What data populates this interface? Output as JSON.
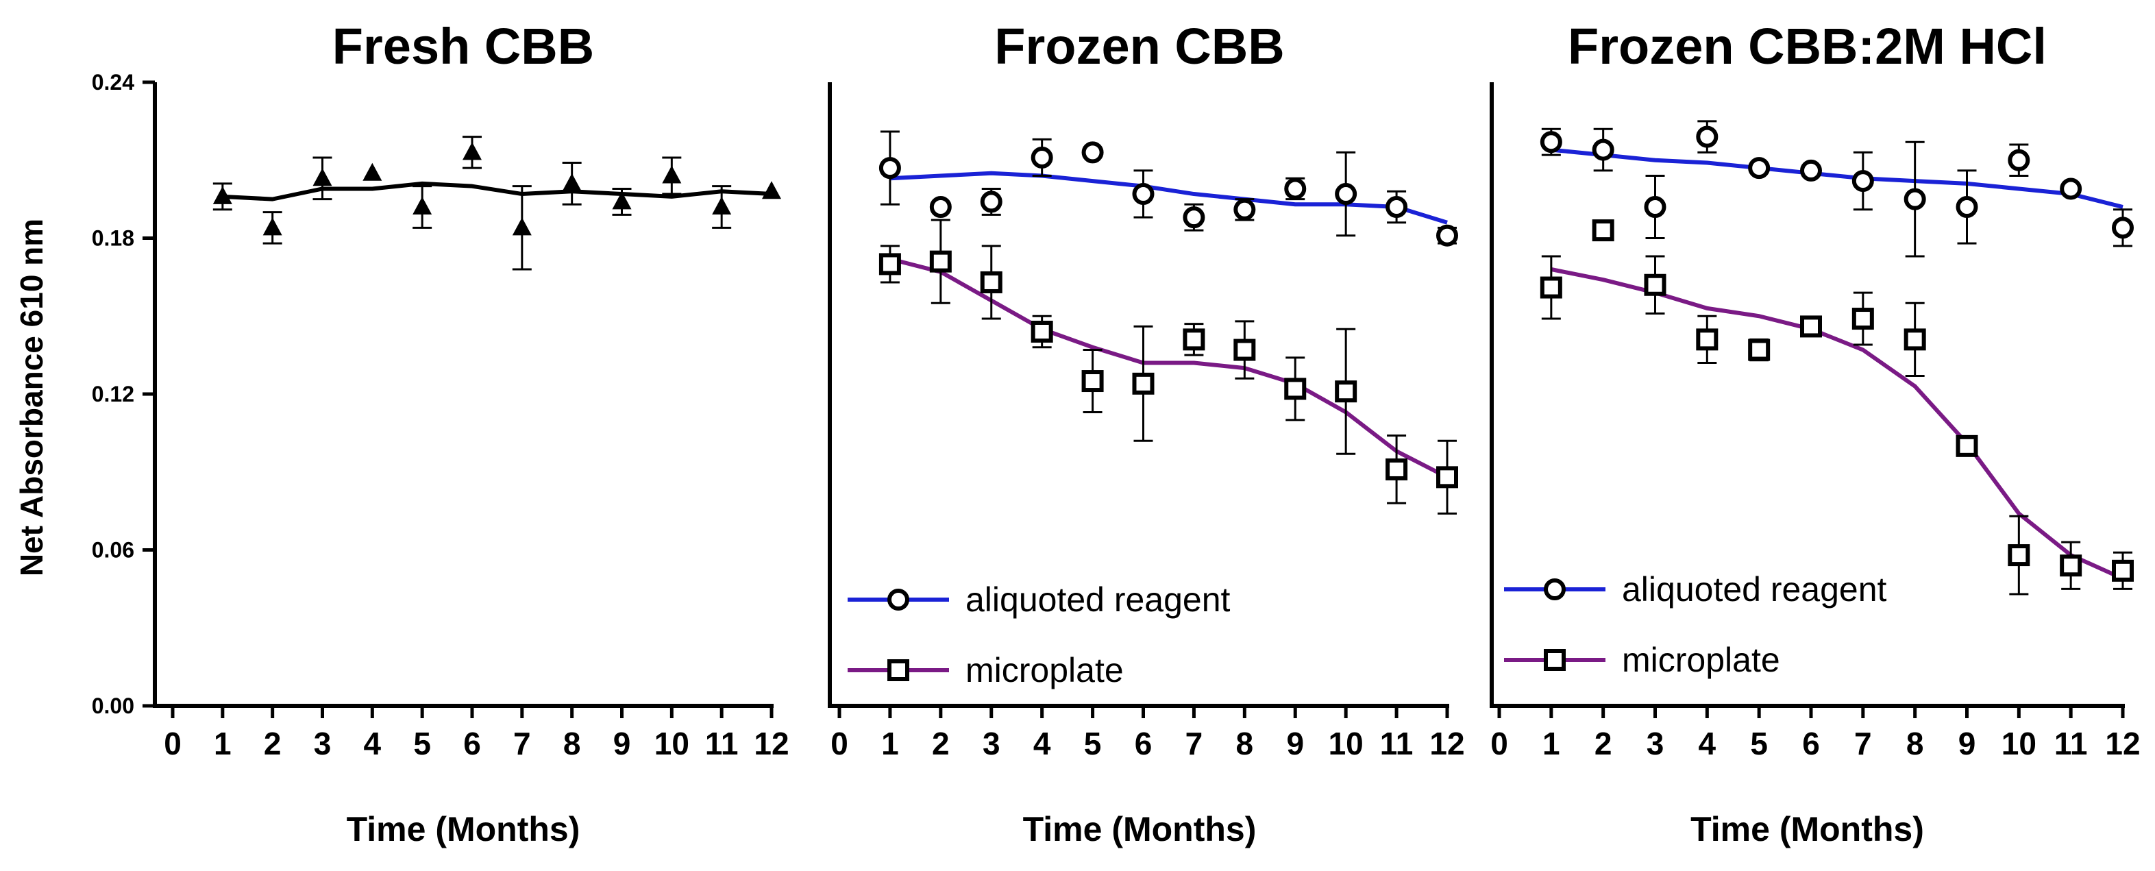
{
  "ylabel": "Net Absorbance 610 nm",
  "chart_data": [
    {
      "type": "line",
      "title": "Fresh CBB",
      "xlabel": "Time (Months)",
      "ylabel": "Net Absorbance 610 nm",
      "xlim": [
        0,
        12
      ],
      "ylim": [
        0,
        0.24
      ],
      "xticks": [
        "0",
        "1",
        "2",
        "3",
        "4",
        "5",
        "6",
        "7",
        "8",
        "9",
        "10",
        "11",
        "12"
      ],
      "yticks": [
        "0.00",
        "0.06",
        "0.12",
        "0.18",
        "0.24"
      ],
      "legend": null,
      "series": [
        {
          "name": "Fresh CBB",
          "marker": "triangle",
          "color": "#000000",
          "x": [
            1,
            2,
            3,
            4,
            5,
            6,
            7,
            8,
            9,
            10,
            11,
            12
          ],
          "y": [
            0.196,
            0.184,
            0.203,
            0.205,
            0.192,
            0.213,
            0.184,
            0.201,
            0.194,
            0.204,
            0.192,
            0.198
          ],
          "err": [
            0.005,
            0.006,
            0.008,
            0,
            0.008,
            0.006,
            0.016,
            0.008,
            0.005,
            0.007,
            0.008,
            0
          ],
          "fit": [
            0.196,
            0.195,
            0.199,
            0.199,
            0.201,
            0.2,
            0.197,
            0.198,
            0.197,
            0.196,
            0.198,
            0.197
          ]
        }
      ]
    },
    {
      "type": "line",
      "title": "Frozen CBB",
      "xlabel": "Time (Months)",
      "xlim": [
        0,
        12
      ],
      "ylim": [
        0,
        0.24
      ],
      "xticks": [
        "0",
        "1",
        "2",
        "3",
        "4",
        "5",
        "6",
        "7",
        "8",
        "9",
        "10",
        "11",
        "12"
      ],
      "legend": "bottom-left",
      "series": [
        {
          "name": "aliquoted reagent",
          "marker": "circle",
          "color": "#1a22d6",
          "x": [
            1,
            2,
            3,
            4,
            5,
            6,
            7,
            8,
            9,
            10,
            11,
            12
          ],
          "y": [
            0.207,
            0.192,
            0.194,
            0.211,
            0.213,
            0.197,
            0.188,
            0.191,
            0.199,
            0.197,
            0.192,
            0.181
          ],
          "err": [
            0.014,
            0,
            0.005,
            0.007,
            0,
            0.009,
            0.005,
            0.004,
            0.004,
            0.016,
            0.006,
            0.003
          ],
          "fit": [
            0.203,
            0.204,
            0.205,
            0.204,
            0.202,
            0.2,
            0.197,
            0.195,
            0.193,
            0.193,
            0.192,
            0.186
          ]
        },
        {
          "name": "microplate",
          "marker": "square",
          "color": "#7a1a85",
          "x": [
            1,
            2,
            3,
            4,
            5,
            6,
            7,
            8,
            9,
            10,
            11,
            12
          ],
          "y": [
            0.17,
            0.171,
            0.163,
            0.144,
            0.125,
            0.124,
            0.141,
            0.137,
            0.122,
            0.121,
            0.091,
            0.088
          ],
          "err": [
            0.007,
            0.016,
            0.014,
            0.006,
            0.012,
            0.022,
            0.006,
            0.011,
            0.012,
            0.024,
            0.013,
            0.014
          ],
          "fit": [
            0.172,
            0.167,
            0.156,
            0.145,
            0.138,
            0.132,
            0.132,
            0.13,
            0.124,
            0.113,
            0.098,
            0.088
          ]
        }
      ]
    },
    {
      "type": "line",
      "title": "Frozen CBB:2M HCl",
      "xlabel": "Time (Months)",
      "xlim": [
        0,
        12
      ],
      "ylim": [
        0,
        0.24
      ],
      "xticks": [
        "0",
        "1",
        "2",
        "3",
        "4",
        "5",
        "6",
        "7",
        "8",
        "9",
        "10",
        "11",
        "12"
      ],
      "legend": "bottom-left",
      "series": [
        {
          "name": "aliquoted reagent",
          "marker": "circle",
          "color": "#1a22d6",
          "x": [
            1,
            2,
            3,
            4,
            5,
            6,
            7,
            8,
            9,
            10,
            11,
            12
          ],
          "y": [
            0.217,
            0.214,
            0.192,
            0.219,
            0.207,
            0.206,
            0.202,
            0.195,
            0.192,
            0.21,
            0.199,
            0.184
          ],
          "err": [
            0.005,
            0.008,
            0.012,
            0.006,
            0,
            0,
            0.011,
            0.022,
            0.014,
            0.006,
            0,
            0.007
          ],
          "fit": [
            0.214,
            0.212,
            0.21,
            0.209,
            0.207,
            0.205,
            0.203,
            0.202,
            0.201,
            0.199,
            0.197,
            0.192
          ]
        },
        {
          "name": "microplate",
          "marker": "square",
          "color": "#7a1a85",
          "x": [
            1,
            2,
            3,
            4,
            5,
            6,
            7,
            8,
            9,
            10,
            11,
            12
          ],
          "y": [
            0.161,
            0.183,
            0.162,
            0.141,
            0.137,
            0.146,
            0.149,
            0.141,
            0.1,
            0.058,
            0.054,
            0.052
          ],
          "err": [
            0.012,
            0,
            0.011,
            0.009,
            0.004,
            0,
            0.01,
            0.014,
            0,
            0.015,
            0.009,
            0.007
          ],
          "fit": [
            0.168,
            0.164,
            0.159,
            0.153,
            0.15,
            0.145,
            0.137,
            0.123,
            0.101,
            0.074,
            0.058,
            0.049
          ]
        }
      ]
    }
  ]
}
